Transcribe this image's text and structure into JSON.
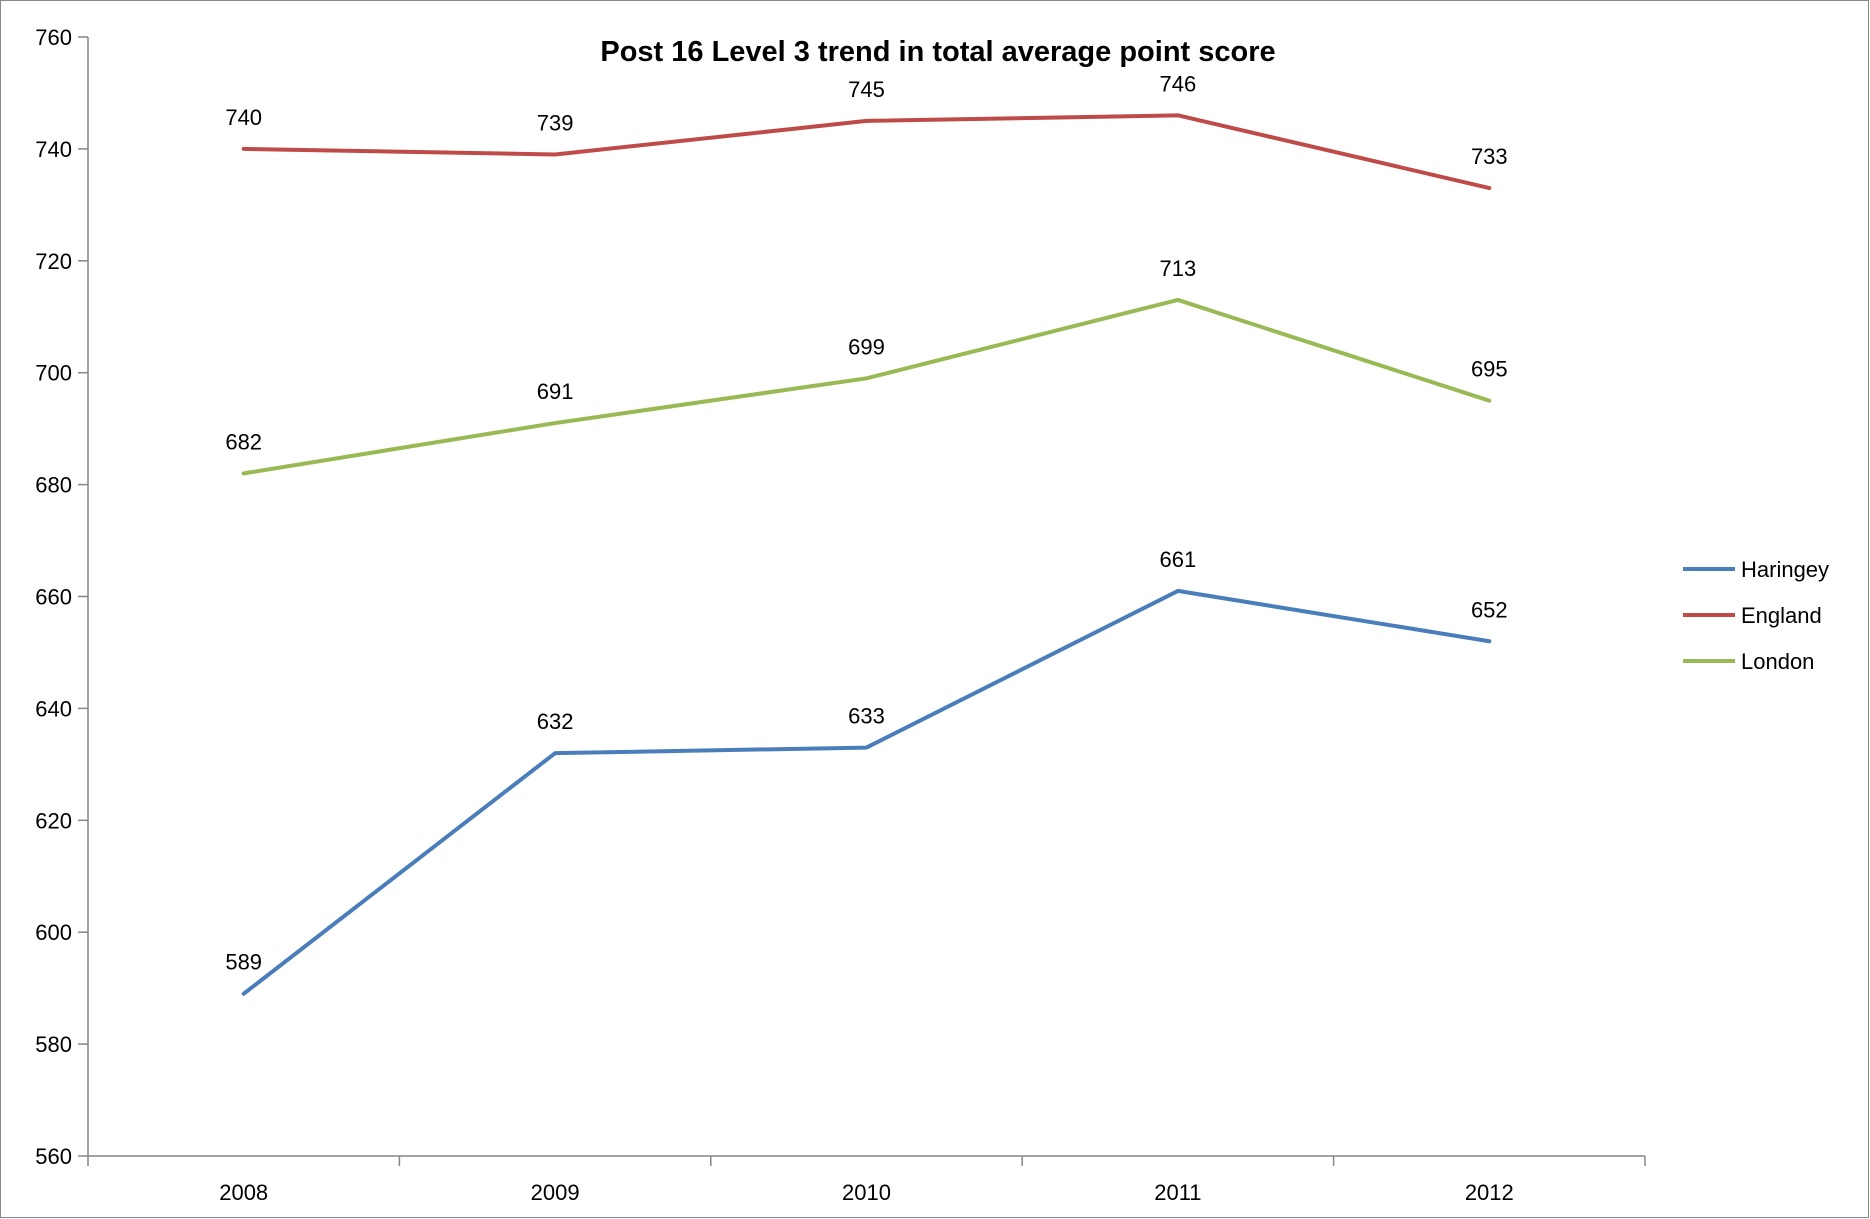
{
  "chart_data": {
    "type": "line",
    "title": "Post 16 Level 3 trend in total average point score",
    "xlabel": "",
    "ylabel": "",
    "categories": [
      "2008",
      "2009",
      "2010",
      "2011",
      "2012"
    ],
    "ylim": [
      560,
      760
    ],
    "yticks": [
      560,
      580,
      600,
      620,
      640,
      660,
      680,
      700,
      720,
      740,
      760
    ],
    "grid": false,
    "legend_position": "right",
    "series": [
      {
        "name": "Haringey",
        "color": "#4a7ebb",
        "values": [
          589,
          632,
          633,
          661,
          652
        ]
      },
      {
        "name": "England",
        "color": "#be4b48",
        "values": [
          740,
          739,
          745,
          746,
          733
        ]
      },
      {
        "name": "London",
        "color": "#98b954",
        "values": [
          682,
          691,
          699,
          713,
          695
        ]
      }
    ]
  }
}
